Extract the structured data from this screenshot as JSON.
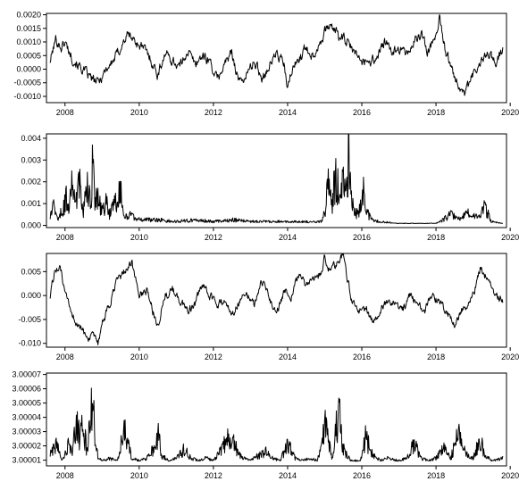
{
  "chart_data": [
    {
      "type": "line",
      "title": "",
      "xlabel": "",
      "ylabel": "",
      "xlim": [
        2007.5,
        2019.9
      ],
      "ylim": [
        -0.00123,
        0.00205
      ],
      "xticks": [
        2008,
        2010,
        2012,
        2014,
        2016,
        2018,
        2020
      ],
      "xtick_labels": [
        "2008",
        "2010",
        "2012",
        "2014",
        "2016",
        "2018",
        "2020"
      ],
      "yticks": [
        -0.001,
        -0.0005,
        0.0,
        0.0005,
        0.001,
        0.0015,
        0.002
      ],
      "ytick_labels": [
        "-0.0010",
        "-0.0005",
        "0.0000",
        "0.0005",
        "0.0010",
        "0.0015",
        "0.0020"
      ],
      "grid": false,
      "series": [
        {
          "x": [
            2007.6,
            2007.75,
            2007.9,
            2008.0,
            2008.2,
            2008.4,
            2008.6,
            2008.75,
            2008.9,
            2009.1,
            2009.3,
            2009.5,
            2009.7,
            2009.9,
            2010.1,
            2010.3,
            2010.5,
            2010.7,
            2010.9,
            2011.1,
            2011.3,
            2011.5,
            2011.7,
            2011.9,
            2012.1,
            2012.3,
            2012.5,
            2012.7,
            2012.9,
            2013.1,
            2013.3,
            2013.5,
            2013.7,
            2013.9,
            2014.0,
            2014.1,
            2014.3,
            2014.5,
            2014.7,
            2014.9,
            2015.1,
            2015.25,
            2015.4,
            2015.6,
            2015.8,
            2016.0,
            2016.2,
            2016.4,
            2016.6,
            2016.8,
            2017.0,
            2017.2,
            2017.4,
            2017.6,
            2017.8,
            2018.0,
            2018.1,
            2018.25,
            2018.4,
            2018.6,
            2018.8,
            2019.0,
            2019.2,
            2019.4,
            2019.6,
            2019.8
          ],
          "y": [
            0.0003,
            0.0011,
            0.0008,
            0.001,
            0.0004,
            0.0001,
            -0.0002,
            -0.0004,
            -0.0005,
            0.0,
            0.0003,
            0.0008,
            0.0013,
            0.001,
            0.0008,
            0.0004,
            -0.0002,
            0.0006,
            0.0003,
            0.0001,
            0.0007,
            0.0002,
            0.0005,
            0.0003,
            -0.0004,
            0.0002,
            0.0006,
            -0.0005,
            -0.0002,
            0.0003,
            -0.0003,
            0.0001,
            0.0006,
            0.0002,
            -0.0008,
            -0.0001,
            0.0004,
            0.0008,
            0.0005,
            0.0011,
            0.0016,
            0.0015,
            0.0012,
            0.001,
            0.0006,
            0.0003,
            0.0003,
            0.0004,
            0.001,
            0.0006,
            0.0008,
            0.0005,
            0.001,
            0.0013,
            0.0006,
            0.0014,
            0.0019,
            0.0007,
            0.0001,
            -0.0005,
            -0.0009,
            -0.0002,
            0.0002,
            0.0006,
            0.0003,
            0.0007
          ]
        }
      ]
    },
    {
      "type": "line",
      "title": "",
      "xlabel": "",
      "ylabel": "",
      "xlim": [
        2007.5,
        2019.9
      ],
      "ylim": [
        -0.0001,
        0.0042
      ],
      "xticks": [
        2008,
        2010,
        2012,
        2014,
        2016,
        2018,
        2020
      ],
      "xtick_labels": [
        "2008",
        "2010",
        "2012",
        "2014",
        "2016",
        "2018",
        "2020"
      ],
      "yticks": [
        0.0,
        0.001,
        0.002,
        0.003,
        0.004
      ],
      "ytick_labels": [
        "0.000",
        "0.001",
        "0.002",
        "0.003",
        "0.004"
      ],
      "grid": false,
      "series": [
        {
          "x": [
            2007.6,
            2007.7,
            2007.8,
            2007.9,
            2008.0,
            2008.05,
            2008.1,
            2008.2,
            2008.3,
            2008.4,
            2008.5,
            2008.6,
            2008.7,
            2008.75,
            2008.8,
            2008.9,
            2009.0,
            2009.1,
            2009.2,
            2009.3,
            2009.5,
            2009.6,
            2009.8,
            2010.0,
            2010.5,
            2011.0,
            2011.5,
            2012.0,
            2012.5,
            2013.0,
            2013.5,
            2014.0,
            2014.5,
            2014.9,
            2015.0,
            2015.1,
            2015.2,
            2015.3,
            2015.4,
            2015.5,
            2015.6,
            2015.65,
            2015.7,
            2015.8,
            2015.9,
            2016.0,
            2016.05,
            2016.1,
            2016.2,
            2016.3,
            2016.5,
            2017.0,
            2017.5,
            2018.0,
            2018.2,
            2018.4,
            2018.6,
            2018.8,
            2019.0,
            2019.2,
            2019.3,
            2019.5,
            2019.8
          ],
          "y": [
            0.0006,
            0.001,
            0.0004,
            0.0008,
            0.0012,
            0.0018,
            0.001,
            0.0028,
            0.0012,
            0.0024,
            0.0008,
            0.0022,
            0.001,
            0.0037,
            0.0012,
            0.0016,
            0.0007,
            0.0013,
            0.0006,
            0.001,
            0.0019,
            0.0004,
            0.0006,
            0.0003,
            0.0003,
            0.0002,
            0.0003,
            0.0002,
            0.0003,
            0.0002,
            0.0002,
            0.0002,
            0.0002,
            0.0002,
            0.0008,
            0.0022,
            0.0012,
            0.003,
            0.0014,
            0.0025,
            0.0018,
            0.0041,
            0.0016,
            0.0008,
            0.0006,
            0.0012,
            0.002,
            0.0008,
            0.0005,
            0.0003,
            0.0002,
            0.0001,
            0.0001,
            0.0001,
            0.0003,
            0.0006,
            0.0003,
            0.0007,
            0.0005,
            0.0004,
            0.0012,
            0.0002,
            0.0001
          ]
        }
      ]
    },
    {
      "type": "line",
      "title": "",
      "xlabel": "",
      "ylabel": "",
      "xlim": [
        2007.5,
        2019.9
      ],
      "ylim": [
        -0.0108,
        0.0088
      ],
      "xticks": [
        2008,
        2010,
        2012,
        2014,
        2016,
        2018,
        2020
      ],
      "xtick_labels": [
        "2008",
        "2010",
        "2012",
        "2014",
        "2016",
        "2018",
        "2020"
      ],
      "yticks": [
        -0.01,
        -0.005,
        0.0,
        0.005
      ],
      "ytick_labels": [
        "-0.010",
        "-0.005",
        "0.000",
        "0.005"
      ],
      "grid": false,
      "series": [
        {
          "x": [
            2007.6,
            2007.75,
            2007.9,
            2008.0,
            2008.2,
            2008.4,
            2008.6,
            2008.75,
            2008.9,
            2009.0,
            2009.2,
            2009.4,
            2009.6,
            2009.8,
            2010.0,
            2010.2,
            2010.4,
            2010.5,
            2010.7,
            2010.9,
            2011.1,
            2011.3,
            2011.5,
            2011.7,
            2011.9,
            2012.1,
            2012.3,
            2012.5,
            2012.7,
            2012.9,
            2013.1,
            2013.3,
            2013.5,
            2013.7,
            2013.9,
            2014.1,
            2014.3,
            2014.5,
            2014.7,
            2014.9,
            2015.0,
            2015.1,
            2015.3,
            2015.5,
            2015.7,
            2015.9,
            2016.1,
            2016.3,
            2016.5,
            2016.7,
            2016.9,
            2017.1,
            2017.3,
            2017.5,
            2017.7,
            2017.9,
            2018.1,
            2018.3,
            2018.5,
            2018.7,
            2018.9,
            2019.0,
            2019.2,
            2019.4,
            2019.6,
            2019.8
          ],
          "y": [
            0.0,
            0.006,
            0.005,
            0.0,
            -0.004,
            -0.007,
            -0.0085,
            -0.009,
            -0.01,
            -0.006,
            -0.002,
            0.003,
            0.005,
            0.007,
            0.0,
            0.001,
            -0.004,
            -0.006,
            0.0,
            0.001,
            -0.001,
            -0.003,
            -0.002,
            0.002,
            0.0,
            -0.002,
            -0.001,
            -0.004,
            -0.001,
            0.001,
            -0.002,
            0.003,
            0.0,
            -0.004,
            0.001,
            0.0,
            0.004,
            0.002,
            0.003,
            0.005,
            0.008,
            0.006,
            0.006,
            0.0085,
            0.0,
            -0.004,
            -0.002,
            -0.006,
            -0.003,
            -0.001,
            -0.002,
            -0.003,
            0.0,
            -0.002,
            -0.003,
            0.0,
            -0.001,
            -0.004,
            -0.006,
            -0.003,
            -0.002,
            0.0,
            0.006,
            0.003,
            0.0,
            -0.001
          ]
        }
      ]
    },
    {
      "type": "line",
      "title": "",
      "xlabel": "",
      "ylabel": "",
      "xlim": [
        2007.5,
        2019.9
      ],
      "ylim": [
        3.000006,
        3.000071
      ],
      "xticks": [
        2008,
        2010,
        2012,
        2014,
        2016,
        2018,
        2020
      ],
      "xtick_labels": [
        "2008",
        "2010",
        "2012",
        "2014",
        "2016",
        "2018",
        "2020"
      ],
      "yticks": [
        3.00001,
        3.00002,
        3.00003,
        3.00004,
        3.00005,
        3.00006,
        3.00007
      ],
      "ytick_labels": [
        "3.00001",
        "3.00002",
        "3.00003",
        "3.00004",
        "3.00005",
        "3.00006",
        "3.00007"
      ],
      "grid": false,
      "series": [
        {
          "x": [
            2007.6,
            2007.75,
            2007.9,
            2008.0,
            2008.1,
            2008.2,
            2008.3,
            2008.4,
            2008.5,
            2008.6,
            2008.7,
            2008.75,
            2008.8,
            2008.9,
            2009.0,
            2009.2,
            2009.4,
            2009.6,
            2009.8,
            2010.0,
            2010.2,
            2010.4,
            2010.5,
            2010.6,
            2010.8,
            2011.0,
            2011.2,
            2011.4,
            2011.6,
            2011.8,
            2012.0,
            2012.2,
            2012.4,
            2012.6,
            2012.8,
            2013.0,
            2013.2,
            2013.4,
            2013.6,
            2013.8,
            2014.0,
            2014.2,
            2014.4,
            2014.6,
            2014.8,
            2014.9,
            2015.0,
            2015.1,
            2015.2,
            2015.3,
            2015.4,
            2015.5,
            2015.7,
            2015.9,
            2016.0,
            2016.1,
            2016.3,
            2016.5,
            2016.7,
            2017.0,
            2017.2,
            2017.4,
            2017.6,
            2017.8,
            2018.0,
            2018.2,
            2018.4,
            2018.6,
            2018.8,
            2019.0,
            2019.2,
            2019.3,
            2019.5,
            2019.8
          ],
          "y": [
            3.000015,
            3.000025,
            3.000012,
            3.000015,
            3.00003,
            3.00002,
            3.000045,
            3.00003,
            3.00004,
            3.000015,
            3.000055,
            3.000068,
            3.00003,
            3.000012,
            3.00001,
            3.000012,
            3.00001,
            3.000035,
            3.000012,
            3.00001,
            3.000012,
            3.00002,
            3.000035,
            3.000015,
            3.00001,
            3.000012,
            3.00002,
            3.000012,
            3.00001,
            3.000012,
            3.00001,
            3.000018,
            3.00003,
            3.000022,
            3.000012,
            3.00001,
            3.000014,
            3.000018,
            3.000012,
            3.00001,
            3.000025,
            3.000012,
            3.00001,
            3.000012,
            3.00001,
            3.00002,
            3.000048,
            3.00003,
            3.00001,
            3.000042,
            3.00005,
            3.00002,
            3.00001,
            3.00001,
            3.000012,
            3.00003,
            3.000015,
            3.00001,
            3.000012,
            3.00001,
            3.000012,
            3.000025,
            3.000012,
            3.00001,
            3.000012,
            3.00002,
            3.000012,
            3.000035,
            3.000015,
            3.000012,
            3.00003,
            3.000015,
            3.00001,
            3.000012
          ]
        }
      ]
    }
  ]
}
